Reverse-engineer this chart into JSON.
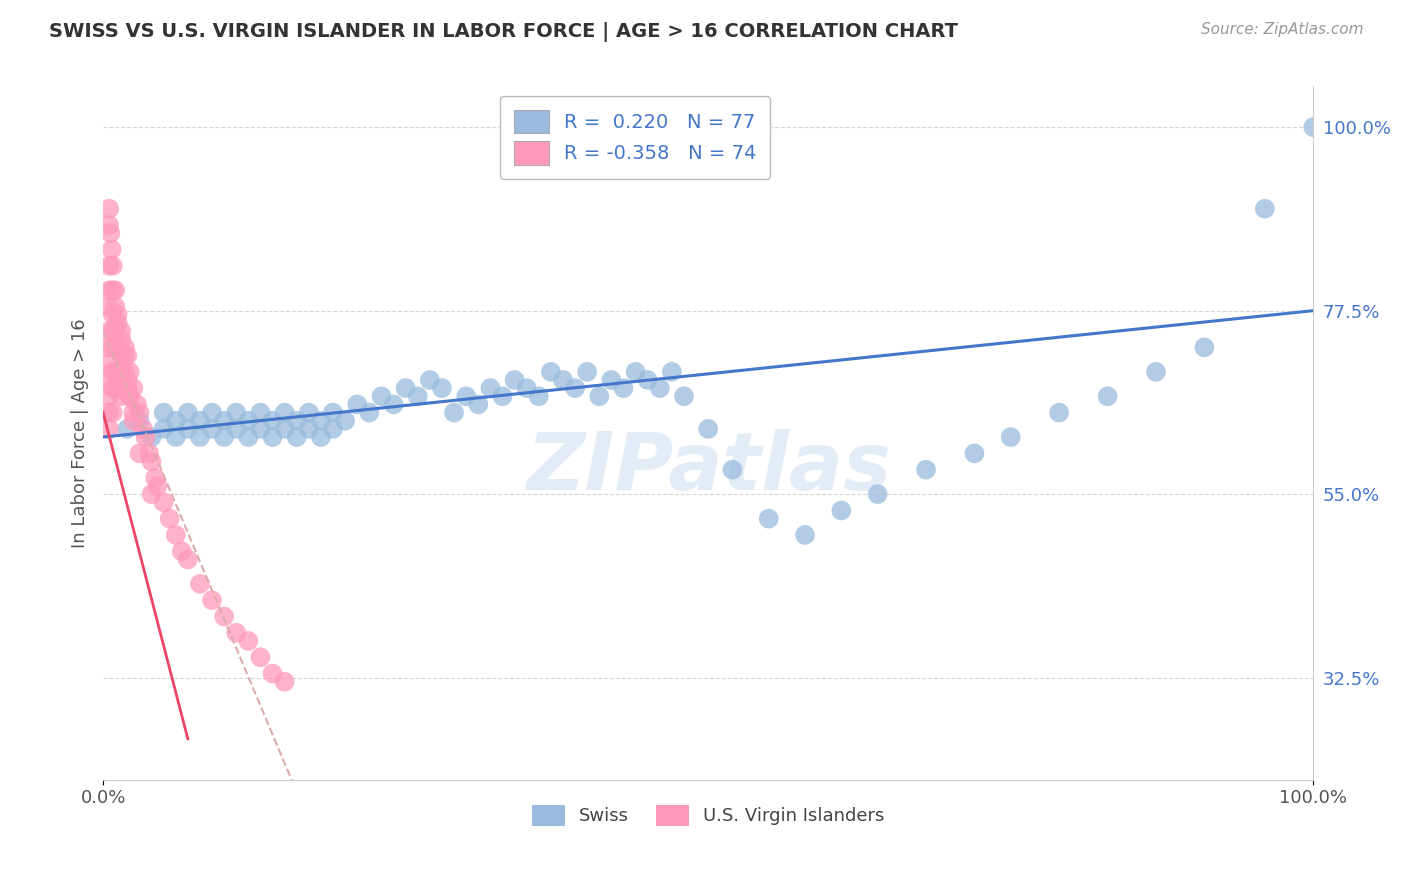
{
  "title": "SWISS VS U.S. VIRGIN ISLANDER IN LABOR FORCE | AGE > 16 CORRELATION CHART",
  "source_text": "Source: ZipAtlas.com",
  "ylabel": "In Labor Force | Age > 16",
  "xlim": [
    0.0,
    1.0
  ],
  "ylim": [
    0.2,
    1.05
  ],
  "ytick_values": [
    0.325,
    0.55,
    0.775,
    1.0
  ],
  "ytick_labels": [
    "32.5%",
    "55.0%",
    "77.5%",
    "100.0%"
  ],
  "watermark": "ZIPatlas",
  "blue_color": "#99BBDD",
  "pink_color": "#FF99BB",
  "blue_line_color": "#4477CC",
  "pink_line_color": "#EE4466",
  "swiss_scatter_x": [
    0.02,
    0.03,
    0.04,
    0.05,
    0.05,
    0.06,
    0.06,
    0.07,
    0.07,
    0.08,
    0.08,
    0.09,
    0.09,
    0.1,
    0.1,
    0.11,
    0.11,
    0.12,
    0.12,
    0.13,
    0.13,
    0.14,
    0.14,
    0.15,
    0.15,
    0.16,
    0.16,
    0.17,
    0.17,
    0.18,
    0.18,
    0.19,
    0.19,
    0.2,
    0.21,
    0.22,
    0.23,
    0.24,
    0.25,
    0.26,
    0.27,
    0.28,
    0.29,
    0.3,
    0.31,
    0.32,
    0.33,
    0.34,
    0.35,
    0.36,
    0.37,
    0.38,
    0.39,
    0.4,
    0.41,
    0.42,
    0.43,
    0.44,
    0.45,
    0.46,
    0.47,
    0.48,
    0.5,
    0.52,
    0.55,
    0.58,
    0.61,
    0.64,
    0.68,
    0.72,
    0.75,
    0.79,
    0.83,
    0.87,
    0.91,
    0.96,
    1.0
  ],
  "swiss_scatter_y": [
    0.63,
    0.64,
    0.62,
    0.65,
    0.63,
    0.64,
    0.62,
    0.65,
    0.63,
    0.64,
    0.62,
    0.65,
    0.63,
    0.64,
    0.62,
    0.65,
    0.63,
    0.64,
    0.62,
    0.65,
    0.63,
    0.64,
    0.62,
    0.65,
    0.63,
    0.64,
    0.62,
    0.65,
    0.63,
    0.64,
    0.62,
    0.65,
    0.63,
    0.64,
    0.66,
    0.65,
    0.67,
    0.66,
    0.68,
    0.67,
    0.69,
    0.68,
    0.65,
    0.67,
    0.66,
    0.68,
    0.67,
    0.69,
    0.68,
    0.67,
    0.7,
    0.69,
    0.68,
    0.7,
    0.67,
    0.69,
    0.68,
    0.7,
    0.69,
    0.68,
    0.7,
    0.67,
    0.63,
    0.58,
    0.52,
    0.5,
    0.53,
    0.55,
    0.58,
    0.6,
    0.62,
    0.65,
    0.67,
    0.7,
    0.73,
    0.9,
    1.0
  ],
  "vi_scatter_x": [
    0.005,
    0.005,
    0.005,
    0.005,
    0.005,
    0.005,
    0.005,
    0.005,
    0.005,
    0.005,
    0.008,
    0.008,
    0.008,
    0.008,
    0.008,
    0.008,
    0.008,
    0.01,
    0.01,
    0.01,
    0.01,
    0.01,
    0.012,
    0.012,
    0.012,
    0.012,
    0.015,
    0.015,
    0.015,
    0.015,
    0.018,
    0.018,
    0.018,
    0.02,
    0.02,
    0.022,
    0.022,
    0.025,
    0.025,
    0.028,
    0.03,
    0.033,
    0.035,
    0.038,
    0.04,
    0.043,
    0.045,
    0.05,
    0.055,
    0.06,
    0.065,
    0.07,
    0.08,
    0.09,
    0.1,
    0.11,
    0.12,
    0.13,
    0.14,
    0.15,
    0.005,
    0.005,
    0.006,
    0.007,
    0.008,
    0.01,
    0.012,
    0.015,
    0.018,
    0.02,
    0.022,
    0.025,
    0.03,
    0.04
  ],
  "vi_scatter_y": [
    0.83,
    0.8,
    0.78,
    0.75,
    0.73,
    0.71,
    0.69,
    0.67,
    0.65,
    0.63,
    0.8,
    0.77,
    0.75,
    0.73,
    0.7,
    0.68,
    0.65,
    0.78,
    0.75,
    0.73,
    0.7,
    0.68,
    0.76,
    0.73,
    0.7,
    0.68,
    0.75,
    0.72,
    0.7,
    0.67,
    0.73,
    0.7,
    0.68,
    0.72,
    0.68,
    0.7,
    0.67,
    0.68,
    0.65,
    0.66,
    0.65,
    0.63,
    0.62,
    0.6,
    0.59,
    0.57,
    0.56,
    0.54,
    0.52,
    0.5,
    0.48,
    0.47,
    0.44,
    0.42,
    0.4,
    0.38,
    0.37,
    0.35,
    0.33,
    0.32,
    0.88,
    0.9,
    0.87,
    0.85,
    0.83,
    0.8,
    0.77,
    0.74,
    0.72,
    0.69,
    0.67,
    0.64,
    0.6,
    0.55
  ]
}
